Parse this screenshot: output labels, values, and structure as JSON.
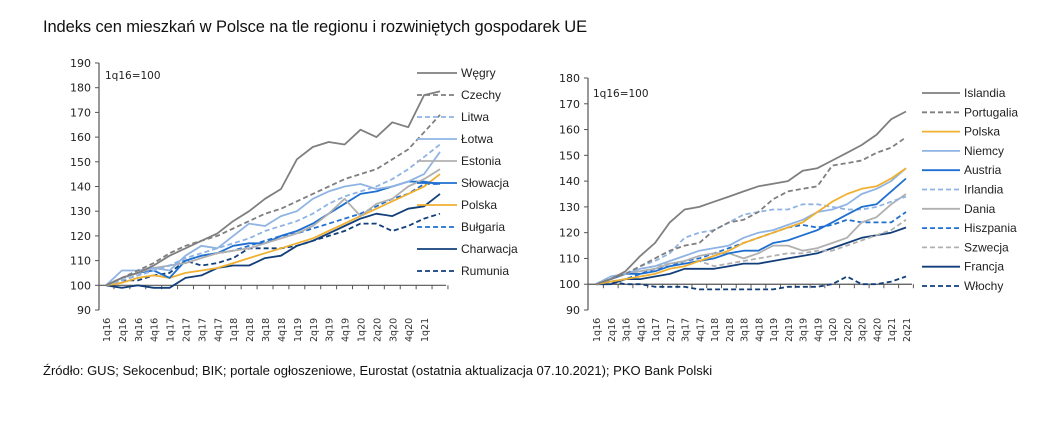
{
  "title": "Indeks cen mieszkań w Polsce na tle regionu i rozwiniętych gospodarek UE",
  "source": "Źródło: GUS; Sekocenbud; BIK; portale ogłoszeniowe, Eurostat (ostatnia aktualizacja 07.10.2021); PKO Bank Polski",
  "chart_data": [
    {
      "type": "line",
      "title": "",
      "annotation": "1q16=100",
      "xlabel": "",
      "ylabel": "",
      "ylim": [
        90,
        190
      ],
      "yticks": [
        90,
        100,
        110,
        120,
        130,
        140,
        150,
        160,
        170,
        180,
        190
      ],
      "grid": false,
      "legend": "right",
      "x": [
        "1q16",
        "2q16",
        "3q16",
        "4q16",
        "1q17",
        "2q17",
        "3q17",
        "4q17",
        "1q18",
        "2q18",
        "3q18",
        "4q18",
        "1q19",
        "2q19",
        "3q19",
        "4q19",
        "1q20",
        "2q20",
        "3q20",
        "4q20",
        "1q21",
        "2q21"
      ],
      "x_tick_labels": [
        "1q16",
        "2q16",
        "3q16",
        "4q16",
        "1q17",
        "2q17",
        "3q17",
        "4q17",
        "1q18",
        "2q18",
        "3q18",
        "4q18",
        "1q19",
        "2q19",
        "3q19",
        "4q19",
        "1q20",
        "2q20",
        "3q20",
        "4q20",
        "1q21"
      ],
      "series": [
        {
          "name": "Węgry",
          "color": "#7f7f7f",
          "dash": "solid",
          "values": [
            100,
            103,
            105,
            108,
            112,
            115,
            118,
            121,
            126,
            130,
            135,
            139,
            151,
            156,
            158,
            157,
            163,
            160,
            166,
            164,
            177,
            178.5
          ]
        },
        {
          "name": "Czechy",
          "color": "#7f7f7f",
          "dash": "dashed",
          "values": [
            100,
            103,
            106,
            109,
            113,
            116,
            118,
            120,
            123,
            126,
            129,
            131,
            134,
            137,
            140,
            143,
            145,
            147,
            151,
            155,
            162,
            169
          ]
        },
        {
          "name": "Litwa",
          "color": "#8fb4e3",
          "dash": "dashed",
          "values": [
            100,
            102,
            104,
            106,
            108,
            111,
            113,
            115,
            117,
            119,
            122,
            124,
            126,
            129,
            133,
            136,
            138,
            140,
            143,
            147,
            152,
            157
          ]
        },
        {
          "name": "Łotwa",
          "color": "#8fb4e3",
          "dash": "solid",
          "values": [
            100,
            106,
            106,
            107,
            106,
            112,
            116,
            115,
            120,
            125,
            124,
            128,
            130,
            135,
            138,
            140,
            141,
            139,
            140,
            142,
            145,
            154
          ]
        },
        {
          "name": "Estonia",
          "color": "#b0b0b0",
          "dash": "solid",
          "values": [
            100,
            103,
            105,
            107,
            108,
            109,
            111,
            113,
            114,
            115,
            117,
            119,
            121,
            124,
            129,
            135,
            128,
            133,
            135,
            140,
            143,
            147
          ]
        },
        {
          "name": "Słowacja",
          "color": "#1f6fd1",
          "dash": "solid",
          "values": [
            100,
            103,
            105,
            106,
            103,
            110,
            112,
            113,
            116,
            117,
            117,
            120,
            122,
            125,
            129,
            133,
            137,
            138,
            140,
            142,
            142,
            141
          ]
        },
        {
          "name": "Polska",
          "color": "#f0b030",
          "dash": "solid",
          "values": [
            100,
            101,
            103,
            104,
            103,
            105,
            106,
            107,
            109,
            111,
            113,
            115,
            117,
            119,
            122,
            125,
            128,
            131,
            134,
            137,
            140,
            145
          ]
        },
        {
          "name": "Bułgaria",
          "color": "#1f6fd1",
          "dash": "dashed",
          "values": [
            100,
            102,
            104,
            106,
            108,
            110,
            112,
            113,
            114,
            116,
            118,
            120,
            121,
            123,
            125,
            127,
            129,
            132,
            135,
            137,
            141,
            141
          ]
        },
        {
          "name": "Charwacja",
          "color": "#123f7a",
          "dash": "solid",
          "values": [
            100,
            99,
            100,
            99,
            99,
            103,
            104,
            107,
            108,
            108,
            111,
            112,
            116,
            118,
            121,
            124,
            127,
            129,
            128,
            131,
            132,
            137
          ]
        },
        {
          "name": "Rumunia",
          "color": "#123f7a",
          "dash": "dashed",
          "values": [
            100,
            102,
            102,
            104,
            105,
            110,
            108,
            109,
            111,
            115,
            115,
            115,
            116,
            118,
            120,
            122,
            125,
            125,
            122,
            124,
            127,
            129
          ]
        }
      ]
    },
    {
      "type": "line",
      "title": "",
      "annotation": "1q16=100",
      "xlabel": "",
      "ylabel": "",
      "ylim": [
        90,
        180
      ],
      "yticks": [
        90,
        100,
        110,
        120,
        130,
        140,
        150,
        160,
        170,
        180
      ],
      "grid": false,
      "legend": "right",
      "x": [
        "1q16",
        "2q16",
        "3q16",
        "4q16",
        "1q17",
        "2q17",
        "3q17",
        "4q17",
        "1q18",
        "2q18",
        "3q18",
        "4q18",
        "1q19",
        "2q19",
        "3q19",
        "4q19",
        "1q20",
        "2q20",
        "3q20",
        "4q20",
        "1q21",
        "2q21"
      ],
      "x_tick_labels": [
        "1q16",
        "2q16",
        "3q16",
        "4q16",
        "1q17",
        "2q17",
        "3q17",
        "4q17",
        "1q18",
        "2q18",
        "3q18",
        "4q18",
        "1q19",
        "2q19",
        "3q19",
        "4q19",
        "1q20",
        "2q20",
        "3q20",
        "4q20",
        "1q21",
        "2q21"
      ],
      "series": [
        {
          "name": "Islandia",
          "color": "#7f7f7f",
          "dash": "solid",
          "values": [
            100,
            102,
            105,
            111,
            116,
            124,
            129,
            130,
            132,
            134,
            136,
            138,
            139,
            140,
            144,
            145,
            148,
            151,
            154,
            158,
            164,
            167
          ]
        },
        {
          "name": "Portugalia",
          "color": "#7f7f7f",
          "dash": "dashed",
          "values": [
            100,
            102,
            104,
            107,
            110,
            113,
            115,
            116,
            121,
            124,
            125,
            128,
            133,
            136,
            137,
            138,
            146,
            147,
            148,
            151,
            153,
            157
          ]
        },
        {
          "name": "Polska",
          "color": "#f0b030",
          "dash": "solid",
          "values": [
            100,
            101,
            102,
            103,
            104,
            106,
            107,
            109,
            111,
            113,
            116,
            118,
            120,
            122,
            124,
            128,
            132,
            135,
            137,
            138,
            141,
            145
          ]
        },
        {
          "name": "Niemcy",
          "color": "#8fb4e3",
          "dash": "solid",
          "values": [
            100,
            103,
            104,
            106,
            107,
            109,
            111,
            113,
            114,
            115,
            118,
            120,
            121,
            123,
            125,
            128,
            129,
            131,
            135,
            137,
            140,
            145
          ]
        },
        {
          "name": "Austria",
          "color": "#1f6fd1",
          "dash": "solid",
          "values": [
            100,
            102,
            104,
            104,
            105,
            107,
            108,
            109,
            110,
            112,
            113,
            113,
            116,
            117,
            119,
            121,
            124,
            127,
            130,
            131,
            136,
            141
          ]
        },
        {
          "name": "Irlandia",
          "color": "#8fb4e3",
          "dash": "dashed",
          "values": [
            100,
            103,
            104,
            107,
            109,
            112,
            118,
            120,
            121,
            124,
            127,
            128,
            129,
            129,
            131,
            131,
            130,
            129,
            129,
            130,
            132,
            134
          ]
        },
        {
          "name": "Dania",
          "color": "#b0b0b0",
          "dash": "solid",
          "values": [
            100,
            102,
            104,
            105,
            106,
            108,
            109,
            111,
            112,
            112,
            110,
            112,
            115,
            115,
            113,
            114,
            116,
            118,
            124,
            126,
            131,
            135
          ]
        },
        {
          "name": "Hiszpania",
          "color": "#1f6fd1",
          "dash": "dashed",
          "values": [
            100,
            101,
            102,
            104,
            106,
            107,
            109,
            110,
            112,
            114,
            116,
            118,
            120,
            122,
            123,
            122,
            123,
            125,
            124,
            124,
            124,
            128
          ]
        },
        {
          "name": "Szwecja",
          "color": "#b0b0b0",
          "dash": "dashed",
          "values": [
            100,
            103,
            104,
            106,
            107,
            108,
            108,
            109,
            107,
            108,
            109,
            110,
            111,
            112,
            112,
            113,
            113,
            115,
            117,
            119,
            121,
            125
          ]
        },
        {
          "name": "Francja",
          "color": "#123f7a",
          "dash": "solid",
          "values": [
            100,
            100,
            102,
            102,
            103,
            104,
            106,
            106,
            106,
            107,
            108,
            108,
            109,
            110,
            111,
            112,
            114,
            116,
            118,
            119,
            120,
            122
          ]
        },
        {
          "name": "Włochy",
          "color": "#123f7a",
          "dash": "dashed",
          "values": [
            100,
            101,
            100,
            100,
            99,
            99,
            99,
            98,
            98,
            98,
            98,
            98,
            98,
            99,
            99,
            99,
            100,
            103,
            100,
            100,
            101,
            103
          ]
        }
      ]
    }
  ]
}
